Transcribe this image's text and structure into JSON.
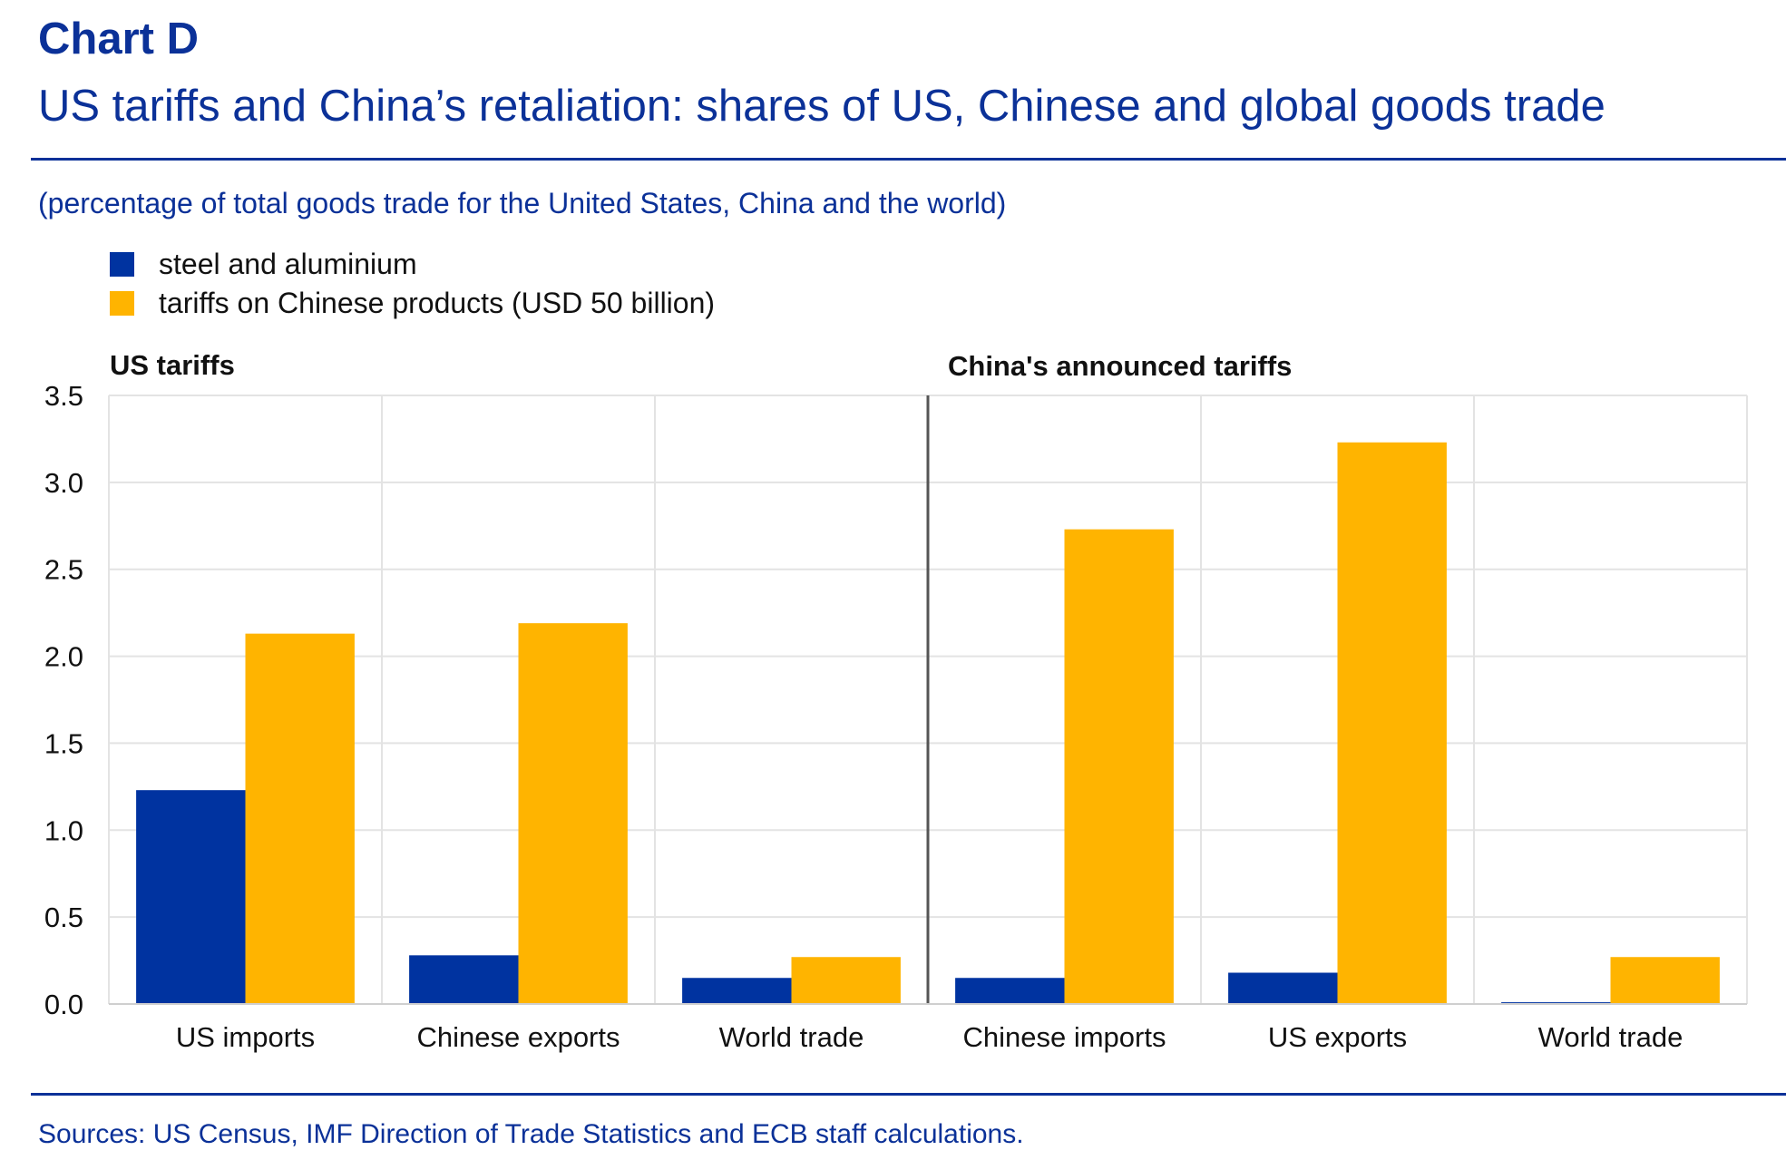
{
  "header": {
    "chart_label": "Chart D",
    "title": "US tariffs and China’s retaliation: shares of US, Chinese and global goods trade",
    "subtitle": "(percentage of total goods trade for the United States, China and the world)"
  },
  "footer": {
    "source": "Sources: US Census, IMF Direction of Trade Statistics and ECB staff calculations."
  },
  "colors": {
    "steel": "#0033a0",
    "tariffs": "#ffb400",
    "text_blue": "#0b3198",
    "grid": "#e3e3e3",
    "divider": "#555555"
  },
  "chart_data": {
    "type": "bar",
    "panels": [
      {
        "title": "US tariffs",
        "categories": [
          "US imports",
          "Chinese exports",
          "World trade"
        ]
      },
      {
        "title": "China's announced tariffs",
        "categories": [
          "Chinese imports",
          "US exports",
          "World trade"
        ]
      }
    ],
    "categories": [
      "US imports",
      "Chinese exports",
      "World trade",
      "Chinese imports",
      "US exports",
      "World trade"
    ],
    "series": [
      {
        "name": "steel and aluminium",
        "color": "#0033a0",
        "values": [
          1.23,
          0.28,
          0.15,
          0.15,
          0.18,
          0.01
        ]
      },
      {
        "name": "tariffs on Chinese products (USD 50 billion)",
        "color": "#ffb400",
        "values": [
          2.13,
          2.19,
          0.27,
          2.73,
          3.23,
          0.27
        ]
      }
    ],
    "yticks": [
      "0.0",
      "0.5",
      "1.0",
      "1.5",
      "2.0",
      "2.5",
      "3.0",
      "3.5"
    ],
    "ylim": [
      0,
      3.5
    ],
    "grid": true,
    "legend_position": "top-left"
  }
}
